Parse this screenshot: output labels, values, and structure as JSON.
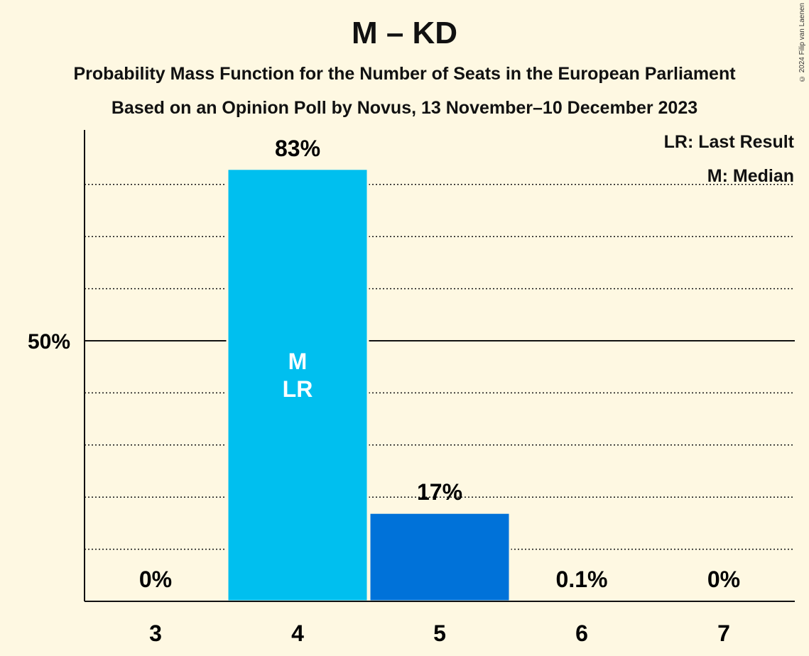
{
  "header": {
    "title": "M – KD",
    "subtitle_1": "Probability Mass Function for the Number of Seats in the European Parliament",
    "subtitle_2": "Based on an Opinion Poll by Novus, 13 November–10 December 2023",
    "copyright": "© 2024 Filip van Laenen"
  },
  "legend": {
    "last_result": "LR: Last Result",
    "median": "M: Median"
  },
  "colors": {
    "background": "#fef8e2",
    "bar_light": "#00bfef",
    "bar_dark": "#0072d9"
  },
  "chart_data": {
    "type": "bar",
    "categories": [
      "3",
      "4",
      "5",
      "6",
      "7"
    ],
    "values": [
      0,
      83,
      17,
      0.1,
      0
    ],
    "value_labels": [
      "0%",
      "83%",
      "17%",
      "0.1%",
      "0%"
    ],
    "median_category": "4",
    "last_result_category": "4",
    "median_marker": "M",
    "last_result_marker": "LR",
    "ylim": [
      0,
      90
    ],
    "y_tick_values": [
      50
    ],
    "y_tick_labels": [
      "50%"
    ],
    "minor_gridlines": [
      10,
      20,
      30,
      40,
      60,
      70,
      80
    ],
    "major_gridlines": [
      50
    ],
    "xlabel": "",
    "ylabel": ""
  }
}
